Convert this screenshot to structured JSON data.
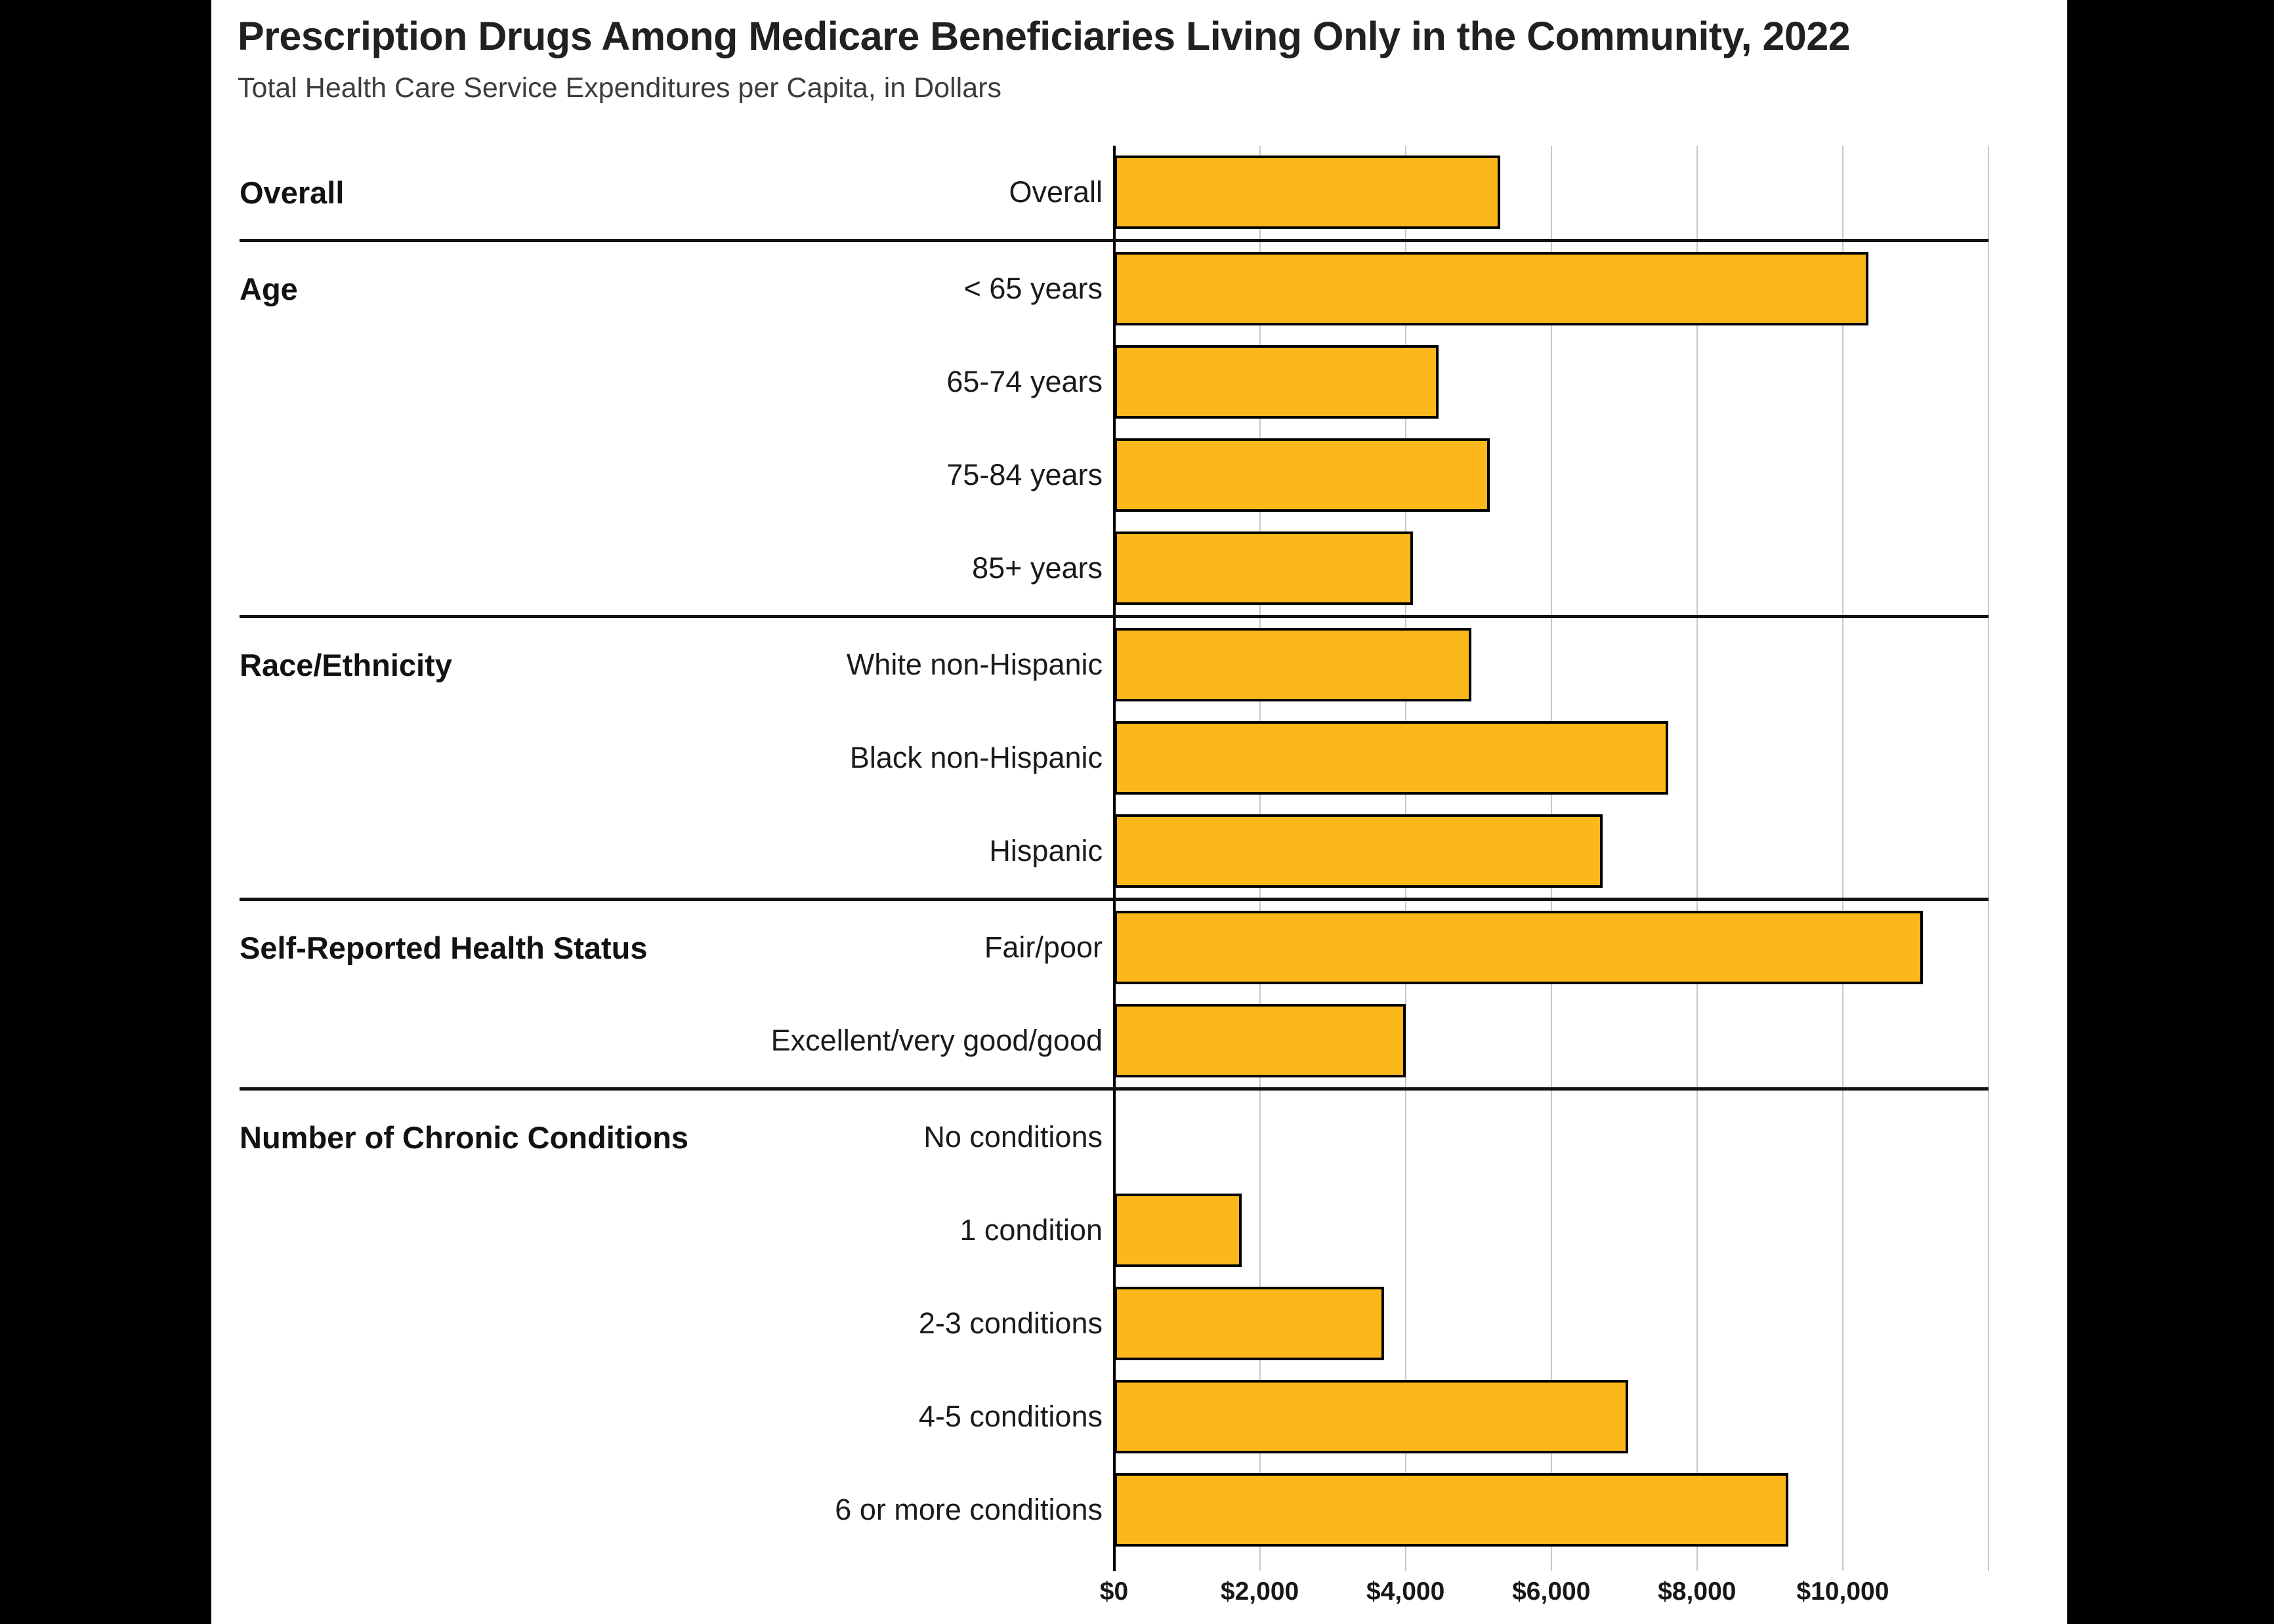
{
  "title": "Prescription Drugs Among Medicare Beneficiaries Living Only in the Community, 2022",
  "subtitle": "Total Health Care Service Expenditures per Capita, in Dollars",
  "colors": {
    "bar_fill": "#FCB71B",
    "bar_border": "#000000",
    "axis_line": "#000000",
    "gridline": "#C9C9C9",
    "group_divider": "#121212",
    "page_background": "#000000",
    "card_background": "#FFFFFF",
    "text": "#1A1A1A"
  },
  "chart_data": {
    "type": "bar",
    "orientation": "horizontal",
    "title": "Prescription Drugs Among Medicare Beneficiaries Living Only in the Community, 2022",
    "subtitle": "Total Health Care Service Expenditures per Capita, in Dollars",
    "unit": "dollars per capita",
    "x_axis": {
      "ticks": [
        "$0",
        "$2,000",
        "$4,000",
        "$6,000",
        "$8,000",
        "$10,000"
      ],
      "tick_values": [
        0,
        2000,
        4000,
        6000,
        8000,
        10000
      ],
      "gridline_values": [
        2000,
        4000,
        6000,
        8000,
        10000,
        12000
      ],
      "max": 12000,
      "grid": true
    },
    "groups": [
      {
        "label": "Overall",
        "rows": [
          {
            "label": "Overall",
            "value": 5300
          }
        ]
      },
      {
        "label": "Age",
        "rows": [
          {
            "label": "< 65 years",
            "value": 10350
          },
          {
            "label": "65-74 years",
            "value": 4450
          },
          {
            "label": "75-84 years",
            "value": 5150
          },
          {
            "label": "85+ years",
            "value": 4100
          }
        ]
      },
      {
        "label": "Race/Ethnicity",
        "rows": [
          {
            "label": "White non-Hispanic",
            "value": 4900
          },
          {
            "label": "Black non-Hispanic",
            "value": 7600
          },
          {
            "label": "Hispanic",
            "value": 6700
          }
        ]
      },
      {
        "label": "Self-Reported Health Status",
        "rows": [
          {
            "label": "Fair/poor",
            "value": 11100
          },
          {
            "label": "Excellent/very good/good",
            "value": 4000
          }
        ]
      },
      {
        "label": "Number of Chronic Conditions",
        "rows": [
          {
            "label": "No conditions",
            "value": 0
          },
          {
            "label": "1 condition",
            "value": 1750
          },
          {
            "label": "2-3 conditions",
            "value": 3700
          },
          {
            "label": "4-5 conditions",
            "value": 7050
          },
          {
            "label": "6 or more conditions",
            "value": 9250
          }
        ]
      }
    ]
  }
}
